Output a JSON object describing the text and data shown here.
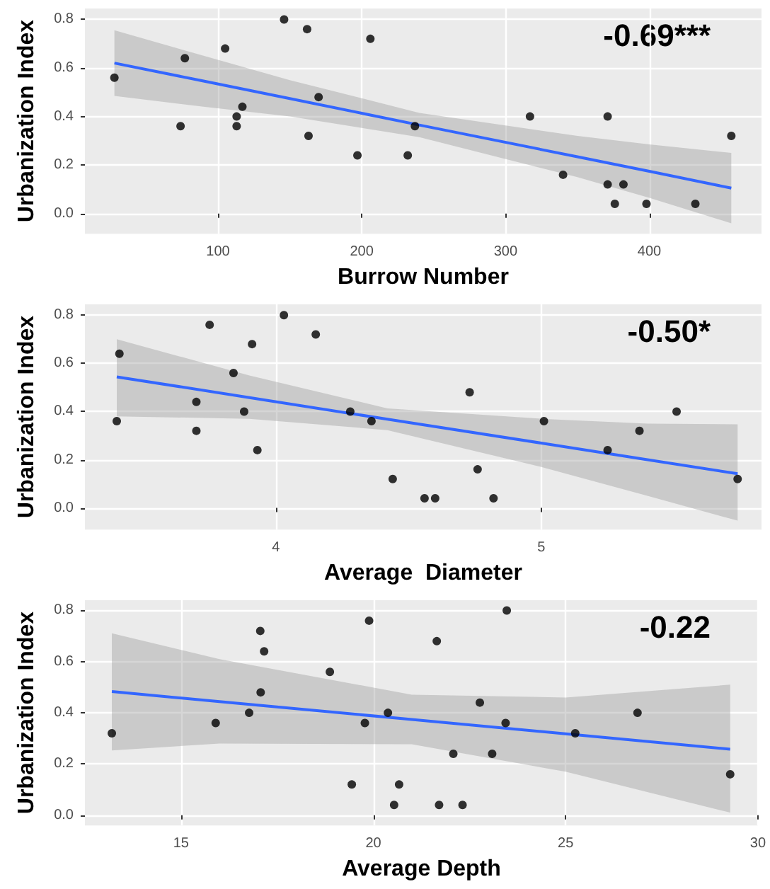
{
  "chart_data": [
    {
      "type": "scatter",
      "xlabel": "Burrow Number",
      "ylabel": "Urbanization Index",
      "annotations": [
        "-0.69***"
      ],
      "xlim": [
        7.5,
        478
      ],
      "ylim": [
        -0.083,
        0.845
      ],
      "xticks": [
        100,
        200,
        300,
        400
      ],
      "yticks": [
        {
          "value": 0,
          "label": "0.0"
        },
        {
          "value": 0.2,
          "label": "0.2"
        },
        {
          "value": 0.4,
          "label": "0.4"
        },
        {
          "value": 0.6,
          "label": "0.6"
        },
        {
          "value": 0.8,
          "label": "0.8"
        }
      ],
      "grid": true,
      "series": [
        {
          "marker": "circle",
          "color": "#000000",
          "x": [
            28,
            74,
            77,
            105,
            113,
            113,
            117,
            146,
            162,
            163,
            170,
            197,
            206,
            232,
            237,
            317,
            340,
            371,
            371,
            376,
            382,
            398,
            432,
            457
          ],
          "values": [
            0.56,
            0.36,
            0.64,
            0.68,
            0.4,
            0.36,
            0.44,
            0.8,
            0.76,
            0.32,
            0.48,
            0.24,
            0.72,
            0.24,
            0.36,
            0.4,
            0.16,
            0.4,
            0.12,
            0.04,
            0.12,
            0.04,
            0.04,
            0.32
          ]
        },
        {
          "type": "line",
          "marker": "none",
          "color": "#3366ff",
          "x": [
            28,
            90,
            150,
            240,
            350,
            400,
            457
          ],
          "values": [
            0.62,
            0.546,
            0.474,
            0.365,
            0.234,
            0.174,
            0.105
          ],
          "lower": [
            0.485,
            0.44,
            0.4,
            0.315,
            0.15,
            0.065,
            -0.04
          ],
          "upper": [
            0.755,
            0.65,
            0.55,
            0.415,
            0.32,
            0.285,
            0.25
          ]
        }
      ]
    },
    {
      "type": "scatter",
      "xlabel": "Average  Diameter",
      "ylabel": "Urbanization Index",
      "annotations": [
        "-0.50*"
      ],
      "xlim": [
        3.28,
        5.83
      ],
      "ylim": [
        -0.09,
        0.845
      ],
      "xticks": [
        4,
        5
      ],
      "yticks": [
        {
          "value": 0,
          "label": "0.0"
        },
        {
          "value": 0.2,
          "label": "0.2"
        },
        {
          "value": 0.4,
          "label": "0.4"
        },
        {
          "value": 0.6,
          "label": "0.6"
        },
        {
          "value": 0.8,
          "label": "0.8"
        }
      ],
      "grid": true,
      "series": [
        {
          "marker": "circle",
          "color": "#000000",
          "x": [
            3.4,
            3.41,
            3.7,
            3.7,
            3.75,
            3.84,
            3.88,
            3.91,
            3.93,
            4.03,
            4.15,
            4.28,
            4.36,
            4.44,
            4.56,
            4.6,
            4.73,
            4.76,
            4.82,
            5.01,
            5.25,
            5.37,
            5.51,
            5.74
          ],
          "values": [
            0.36,
            0.64,
            0.44,
            0.32,
            0.76,
            0.56,
            0.4,
            0.68,
            0.24,
            0.8,
            0.72,
            0.4,
            0.36,
            0.12,
            0.04,
            0.04,
            0.48,
            0.16,
            0.04,
            0.36,
            0.24,
            0.32,
            0.4,
            0.12
          ]
        },
        {
          "type": "line",
          "marker": "none",
          "color": "#3366ff",
          "x": [
            3.4,
            3.9,
            4.42,
            5.0,
            5.4,
            5.74
          ],
          "values": [
            0.544,
            0.458,
            0.368,
            0.269,
            0.2,
            0.142
          ],
          "lower": [
            0.38,
            0.37,
            0.323,
            0.17,
            0.05,
            -0.053
          ],
          "upper": [
            0.7,
            0.55,
            0.413,
            0.37,
            0.35,
            0.347
          ]
        }
      ]
    },
    {
      "type": "scatter",
      "xlabel": "Average Depth",
      "ylabel": "Urbanization Index",
      "annotations": [
        "-0.22"
      ],
      "xlim": [
        12.5,
        30
      ],
      "ylim": [
        -0.04,
        0.84
      ],
      "xticks": [
        15,
        20,
        25,
        30
      ],
      "yticks": [
        {
          "value": 0,
          "label": "0.0"
        },
        {
          "value": 0.2,
          "label": "0.2"
        },
        {
          "value": 0.4,
          "label": "0.4"
        },
        {
          "value": 0.6,
          "label": "0.6"
        },
        {
          "value": 0.8,
          "label": "0.8"
        }
      ],
      "grid": true,
      "series": [
        {
          "marker": "circle",
          "color": "#000000",
          "x": [
            13.2,
            15.9,
            16.77,
            17.06,
            17.07,
            17.16,
            18.87,
            19.44,
            19.78,
            19.89,
            20.38,
            20.54,
            20.67,
            21.65,
            21.71,
            22.08,
            22.32,
            22.77,
            23.09,
            23.44,
            23.47,
            25.25,
            26.87,
            29.28
          ],
          "values": [
            0.32,
            0.36,
            0.4,
            0.72,
            0.48,
            0.64,
            0.56,
            0.12,
            0.36,
            0.76,
            0.4,
            0.04,
            0.12,
            0.68,
            0.04,
            0.24,
            0.04,
            0.44,
            0.24,
            0.36,
            0.8,
            0.32,
            0.4,
            0.16
          ]
        },
        {
          "type": "line",
          "marker": "none",
          "color": "#3366ff",
          "x": [
            13.2,
            16,
            21,
            25,
            29.28
          ],
          "values": [
            0.483,
            0.444,
            0.374,
            0.318,
            0.258
          ],
          "lower": [
            0.253,
            0.28,
            0.277,
            0.17,
            0.01
          ],
          "upper": [
            0.711,
            0.61,
            0.471,
            0.46,
            0.51
          ]
        }
      ]
    }
  ]
}
